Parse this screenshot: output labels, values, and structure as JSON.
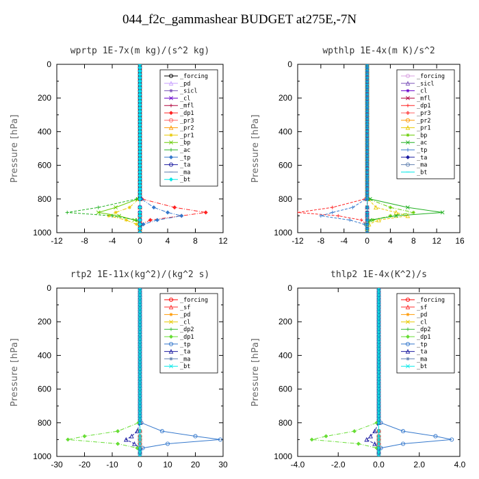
{
  "figure_title": "044_f2c_gammashear  BUDGET at275E,-7N",
  "chart_data": [
    {
      "type": "line",
      "title": "wprtp  1E-7x(m kg)/(s^2 kg)",
      "ylabel": "Pressure [hPa]",
      "xlim": [
        -12,
        12
      ],
      "ylim": [
        1000,
        0
      ],
      "xticks": [
        "-12",
        "-8",
        "-4",
        "0",
        "4",
        "8",
        "12"
      ],
      "yticks": [
        "0",
        "200",
        "400",
        "600",
        "800",
        "1000"
      ],
      "grid": false,
      "legend": "top-right",
      "pressure": [
        800,
        850,
        880,
        900,
        925,
        950,
        975,
        1000
      ],
      "series": [
        {
          "name": "_forcing",
          "color": "#000000",
          "values": [
            0,
            0,
            0,
            0,
            0,
            0,
            0,
            0
          ]
        },
        {
          "name": "_pd",
          "color": "#c8a0ff",
          "values": [
            0,
            0,
            0,
            0,
            0,
            0,
            0,
            0
          ]
        },
        {
          "name": "_sicl",
          "color": "#7a52b8",
          "values": [
            0,
            0,
            0,
            0,
            0,
            0,
            0,
            0
          ]
        },
        {
          "name": "_cl",
          "color": "#6600cc",
          "values": [
            0,
            0,
            0,
            0,
            0,
            0,
            0,
            0
          ]
        },
        {
          "name": "_mfl",
          "color": "#b0003a",
          "values": [
            0,
            0,
            0,
            0,
            0,
            0,
            0,
            0
          ]
        },
        {
          "name": "_dp1",
          "color": "#ff2020",
          "values": [
            0.3,
            5,
            9.5,
            6,
            1.5,
            0.2,
            0,
            0
          ]
        },
        {
          "name": "_pr3",
          "color": "#ff6060",
          "values": [
            0,
            0,
            0,
            0,
            0,
            0,
            0,
            0
          ]
        },
        {
          "name": "_pr2",
          "color": "#ff9900",
          "values": [
            0,
            0,
            0,
            0,
            0,
            0,
            0,
            0
          ]
        },
        {
          "name": "_pr1",
          "color": "#e8c800",
          "values": [
            -0.2,
            -1.5,
            -3.5,
            -4.5,
            -2,
            -0.5,
            0,
            0
          ]
        },
        {
          "name": "_bp",
          "color": "#66cc00",
          "values": [
            -0.3,
            -3.5,
            -6,
            -3,
            -0.8,
            0.3,
            0,
            0
          ]
        },
        {
          "name": "_ac",
          "color": "#20b020",
          "values": [
            -0.5,
            -6,
            -10.5,
            -4,
            -0.5,
            0,
            0,
            0
          ]
        },
        {
          "name": "_tp",
          "color": "#3377cc",
          "values": [
            0.2,
            2,
            4,
            6,
            2.5,
            0.5,
            0,
            0
          ]
        },
        {
          "name": "_ta",
          "color": "#1a1aa0",
          "values": [
            0,
            0,
            0,
            0,
            0,
            0,
            0,
            0
          ]
        },
        {
          "name": "_ma",
          "color": "#6080b0",
          "values": [
            0,
            0,
            0,
            0,
            0,
            0,
            0,
            0
          ]
        },
        {
          "name": "_bt",
          "color": "#00e8e8",
          "values": [
            0,
            0,
            0,
            0,
            0,
            0,
            0,
            0
          ]
        }
      ]
    },
    {
      "type": "line",
      "title": "wpthlp  1E-4x(m K)/s^2",
      "ylabel": "Pressure [hPa]",
      "xlim": [
        -12,
        16
      ],
      "ylim": [
        1000,
        0
      ],
      "xticks": [
        "-12",
        "-8",
        "-4",
        "0",
        "4",
        "8",
        "12",
        "16"
      ],
      "yticks": [
        "0",
        "200",
        "400",
        "600",
        "800",
        "1000"
      ],
      "grid": false,
      "legend": "top-right",
      "pressure": [
        800,
        850,
        880,
        900,
        925,
        950,
        975,
        1000
      ],
      "series": [
        {
          "name": "_forcing",
          "color": "#d8a0e0",
          "values": [
            0,
            0,
            0,
            0,
            0,
            0,
            0,
            0
          ]
        },
        {
          "name": "_sicl",
          "color": "#7a52b8",
          "values": [
            0,
            0,
            0,
            0,
            0,
            0,
            0,
            0
          ]
        },
        {
          "name": "_cl",
          "color": "#6600cc",
          "values": [
            0,
            0,
            0,
            0,
            0,
            0,
            0,
            0
          ]
        },
        {
          "name": "_mfl",
          "color": "#b0003a",
          "values": [
            0,
            0,
            0,
            0,
            0,
            0,
            0,
            0
          ]
        },
        {
          "name": "_dp1",
          "color": "#ff2020",
          "values": [
            -0.4,
            -6,
            -12,
            -5,
            -1,
            -0.2,
            0,
            0
          ]
        },
        {
          "name": "_pr3",
          "color": "#ff6060",
          "values": [
            0,
            0,
            0,
            0,
            0,
            0,
            0,
            0
          ]
        },
        {
          "name": "_pr2",
          "color": "#ff9900",
          "values": [
            0,
            0,
            0,
            0,
            0,
            0,
            0,
            0
          ]
        },
        {
          "name": "_pr1",
          "color": "#e8c800",
          "values": [
            0.2,
            1.5,
            5,
            7,
            2,
            0.3,
            0,
            0
          ]
        },
        {
          "name": "_bp",
          "color": "#66cc00",
          "values": [
            0.3,
            4,
            8,
            4,
            1,
            -0.2,
            0,
            0
          ]
        },
        {
          "name": "_ac",
          "color": "#20b020",
          "values": [
            0.5,
            7,
            13,
            5,
            0.5,
            0,
            0,
            0
          ]
        },
        {
          "name": "_tp",
          "color": "#3377cc",
          "values": [
            -0.2,
            -2.5,
            -6,
            -8,
            -3,
            -0.5,
            0,
            0
          ]
        },
        {
          "name": "_ta",
          "color": "#1a1aa0",
          "values": [
            0,
            0,
            0,
            0,
            0,
            0,
            0,
            0
          ]
        },
        {
          "name": "_ma",
          "color": "#6080b0",
          "values": [
            0,
            0,
            0,
            0,
            0,
            0,
            0,
            0
          ]
        },
        {
          "name": "_bt",
          "color": "#00e8e8",
          "values": [
            0,
            0,
            0,
            0,
            0,
            0,
            0,
            0
          ]
        }
      ]
    },
    {
      "type": "line",
      "title": "rtp2  1E-11x(kg^2)/(kg^2 s)",
      "ylabel": "Pressure [hPa]",
      "xlim": [
        -30,
        30
      ],
      "ylim": [
        1000,
        0
      ],
      "xticks": [
        "-30",
        "-20",
        "-10",
        "0",
        "10",
        "20",
        "30"
      ],
      "yticks": [
        "0",
        "200",
        "400",
        "600",
        "800",
        "1000"
      ],
      "grid": false,
      "legend": "top-right",
      "pressure": [
        800,
        850,
        880,
        900,
        925,
        950,
        975,
        1000
      ],
      "series": [
        {
          "name": "_forcing",
          "color": "#ff0000",
          "values": [
            0,
            0,
            0,
            0,
            0,
            0,
            0,
            0
          ]
        },
        {
          "name": "_sf",
          "color": "#ff3030",
          "values": [
            0,
            0,
            0,
            0,
            0,
            0,
            0,
            0
          ]
        },
        {
          "name": "_pd",
          "color": "#ff9900",
          "values": [
            0,
            0,
            0,
            0,
            0,
            0,
            0,
            0
          ]
        },
        {
          "name": "_cl",
          "color": "#e8c800",
          "values": [
            0,
            0,
            0,
            0,
            0,
            0,
            0,
            0
          ]
        },
        {
          "name": "_dp2",
          "color": "#33bb33",
          "values": [
            0,
            0,
            0,
            0,
            0,
            0,
            0,
            0
          ]
        },
        {
          "name": "_dp1",
          "color": "#66dd33",
          "values": [
            -0.5,
            -8,
            -20,
            -26,
            -8,
            -1,
            0,
            0
          ]
        },
        {
          "name": "_tp",
          "color": "#3377cc",
          "values": [
            0.5,
            8,
            20,
            29,
            10,
            1,
            0,
            0
          ]
        },
        {
          "name": "_ta",
          "color": "#1a1aa0",
          "values": [
            0,
            -1,
            -3,
            -5,
            -2,
            0,
            0,
            0
          ]
        },
        {
          "name": "_ma",
          "color": "#6080b0",
          "values": [
            0,
            0,
            0,
            0,
            0,
            0,
            0,
            0
          ]
        },
        {
          "name": "_bt",
          "color": "#00e8e8",
          "values": [
            0,
            0,
            0,
            0,
            0,
            0,
            0,
            0
          ]
        }
      ]
    },
    {
      "type": "line",
      "title": "thlp2  1E-4x(K^2)/s",
      "ylabel": "Pressure [hPa]",
      "xlim": [
        -4.0,
        4.0
      ],
      "ylim": [
        1000,
        0
      ],
      "xticks": [
        "-4.0",
        "-2.0",
        "0.0",
        "2.0",
        "4.0"
      ],
      "yticks": [
        "0",
        "200",
        "400",
        "600",
        "800",
        "1000"
      ],
      "grid": false,
      "legend": "top-right",
      "pressure": [
        800,
        850,
        880,
        900,
        925,
        950,
        975,
        1000
      ],
      "series": [
        {
          "name": "_forcing",
          "color": "#ff0000",
          "values": [
            0,
            0,
            0,
            0,
            0,
            0,
            0,
            0
          ]
        },
        {
          "name": "_sf",
          "color": "#ff3030",
          "values": [
            0,
            0,
            0,
            0,
            0,
            0,
            0,
            0
          ]
        },
        {
          "name": "_pd",
          "color": "#ff9900",
          "values": [
            0,
            0,
            0,
            0,
            0,
            0,
            0,
            0
          ]
        },
        {
          "name": "_cl",
          "color": "#e8c800",
          "values": [
            0,
            0,
            0,
            0,
            0,
            0,
            0,
            0
          ]
        },
        {
          "name": "_dp2",
          "color": "#33bb33",
          "values": [
            0,
            0,
            0,
            0,
            0,
            0,
            0,
            0
          ]
        },
        {
          "name": "_dp1",
          "color": "#66dd33",
          "values": [
            -0.1,
            -1.2,
            -2.6,
            -3.3,
            -1,
            -0.1,
            0,
            0
          ]
        },
        {
          "name": "_tp",
          "color": "#3377cc",
          "values": [
            0.1,
            1.2,
            2.8,
            3.6,
            1.2,
            0.1,
            0,
            0
          ]
        },
        {
          "name": "_ta",
          "color": "#1a1aa0",
          "values": [
            0,
            -0.2,
            -0.4,
            -0.6,
            -0.2,
            0,
            0,
            0
          ]
        },
        {
          "name": "_ma",
          "color": "#6080b0",
          "values": [
            0,
            0,
            0,
            0,
            0,
            0,
            0,
            0
          ]
        },
        {
          "name": "_bt",
          "color": "#00e8e8",
          "values": [
            0,
            0,
            0,
            0,
            0,
            0,
            0,
            0
          ]
        }
      ]
    }
  ]
}
